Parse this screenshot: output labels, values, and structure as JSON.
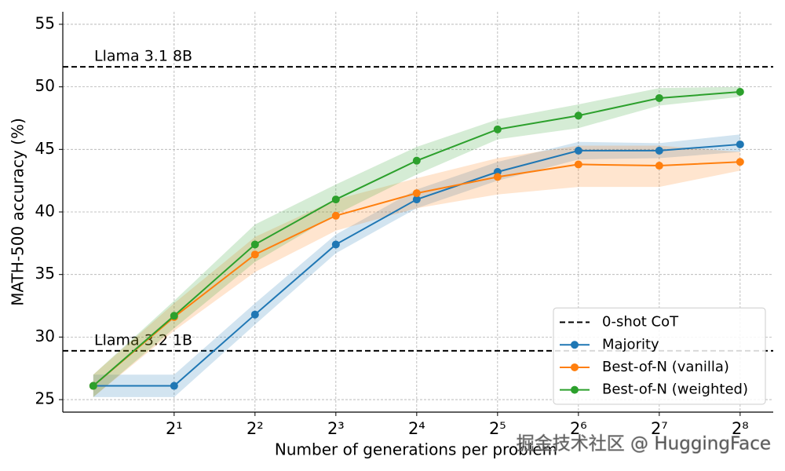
{
  "chart_data": {
    "type": "line",
    "xlabel": "Number of generations per problem",
    "ylabel": "MATH-500 accuracy (%)",
    "x": [
      1,
      2,
      4,
      8,
      16,
      32,
      64,
      128,
      256
    ],
    "xscale": "log2",
    "xlim": [
      0.77,
      340
    ],
    "xticks": [
      {
        "value": 2,
        "label": "2¹"
      },
      {
        "value": 4,
        "label": "2²"
      },
      {
        "value": 8,
        "label": "2³"
      },
      {
        "value": 16,
        "label": "2⁴"
      },
      {
        "value": 32,
        "label": "2⁵"
      },
      {
        "value": 64,
        "label": "2⁶"
      },
      {
        "value": 128,
        "label": "2⁷"
      },
      {
        "value": 256,
        "label": "2⁸"
      }
    ],
    "ylim": [
      24,
      56
    ],
    "yticks": [
      25,
      30,
      35,
      40,
      45,
      50,
      55
    ],
    "grid": true,
    "legend": "lower right",
    "reference_lines": {
      "name": "0-shot CoT",
      "color": "#000000",
      "lines": [
        {
          "label": "Llama 3.1 8B",
          "value": 51.6
        },
        {
          "label": "Llama 3.2 1B",
          "value": 28.9
        }
      ]
    },
    "series": [
      {
        "name": "Majority",
        "color": "#1f77b4",
        "values": [
          26.1,
          26.1,
          31.8,
          37.4,
          41.0,
          43.2,
          44.9,
          44.9,
          45.4
        ],
        "lower": [
          25.2,
          25.2,
          31.0,
          36.7,
          40.3,
          42.5,
          44.2,
          44.3,
          44.8
        ],
        "upper": [
          27.0,
          27.0,
          32.7,
          38.2,
          41.8,
          44.0,
          45.6,
          45.5,
          46.2
        ]
      },
      {
        "name": "Best-of-N (vanilla)",
        "color": "#ff7f0e",
        "values": [
          26.1,
          31.6,
          36.6,
          39.7,
          41.5,
          42.8,
          43.8,
          43.7,
          44.0
        ],
        "lower": [
          25.2,
          30.5,
          35.2,
          38.5,
          40.3,
          41.4,
          42.0,
          42.0,
          43.3
        ],
        "upper": [
          27.0,
          32.7,
          38.0,
          41.0,
          42.7,
          44.3,
          45.3,
          45.3,
          44.8
        ]
      },
      {
        "name": "Best-of-N (weighted)",
        "color": "#2ca02c",
        "values": [
          26.1,
          31.7,
          37.4,
          41.0,
          44.1,
          46.6,
          47.7,
          49.1,
          49.6
        ],
        "lower": [
          25.2,
          30.7,
          36.0,
          39.8,
          43.0,
          45.8,
          46.7,
          48.5,
          49.2
        ],
        "upper": [
          27.0,
          32.9,
          39.0,
          42.2,
          45.2,
          47.4,
          48.6,
          49.9,
          50.0
        ]
      }
    ],
    "watermark": "掘金技术社区 @ HuggingFace"
  }
}
